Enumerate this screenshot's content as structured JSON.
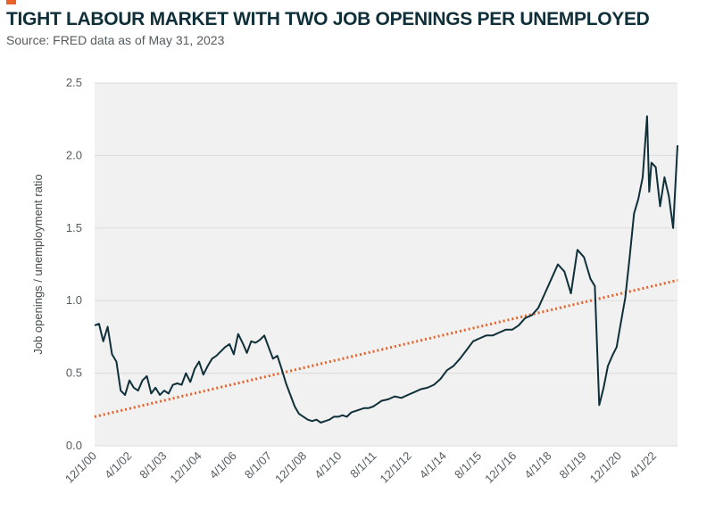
{
  "header": {
    "title": "TIGHT LABOUR MARKET WITH TWO JOB OPENINGS PER UNEMPLOYED",
    "subtitle": "Source: FRED data as of May 31, 2023"
  },
  "colors": {
    "accent": "#e8632a",
    "line": "#0f2f39",
    "trend": "#e8632a",
    "grid": "#dcdcdc",
    "plot_bg": "#f1f1f1"
  },
  "chart_data": {
    "type": "line",
    "title": "TIGHT LABOUR MARKET WITH TWO JOB OPENINGS PER UNEMPLOYED",
    "subtitle": "Source: FRED data as of May 31, 2023",
    "xlabel": "",
    "ylabel": "Job openings / unemployment ratio",
    "ylim": [
      0,
      2.5
    ],
    "yticks": [
      "0.0",
      "0.5",
      "1.0",
      "1.5",
      "2.0",
      "2.5"
    ],
    "xticks": [
      "12/1/00",
      "4/1/02",
      "8/1/03",
      "12/1/04",
      "4/1/06",
      "8/1/07",
      "12/1/08",
      "4/1/10",
      "8/1/11",
      "12/1/12",
      "4/1/14",
      "8/1/15",
      "12/1/16",
      "4/1/18",
      "8/1/19",
      "12/1/20",
      "4/1/22"
    ],
    "xlim": [
      "2000-12",
      "2023-04"
    ],
    "grid": "horizontal",
    "legend": "none",
    "series": [
      {
        "style": "solid",
        "x": [
          "2000-12",
          "2001-02",
          "2001-04",
          "2001-06",
          "2001-08",
          "2001-10",
          "2001-12",
          "2002-02",
          "2002-04",
          "2002-06",
          "2002-08",
          "2002-10",
          "2002-12",
          "2003-02",
          "2003-04",
          "2003-06",
          "2003-08",
          "2003-10",
          "2003-12",
          "2004-02",
          "2004-04",
          "2004-06",
          "2004-08",
          "2004-10",
          "2004-12",
          "2005-02",
          "2005-04",
          "2005-06",
          "2005-08",
          "2005-10",
          "2005-12",
          "2006-02",
          "2006-04",
          "2006-06",
          "2006-08",
          "2006-10",
          "2006-12",
          "2007-02",
          "2007-04",
          "2007-06",
          "2007-08",
          "2007-10",
          "2007-12",
          "2008-02",
          "2008-04",
          "2008-06",
          "2008-08",
          "2008-10",
          "2008-12",
          "2009-02",
          "2009-04",
          "2009-06",
          "2009-08",
          "2009-10",
          "2009-12",
          "2010-02",
          "2010-04",
          "2010-06",
          "2010-08",
          "2010-10",
          "2010-12",
          "2011-02",
          "2011-04",
          "2011-06",
          "2011-08",
          "2011-10",
          "2011-12",
          "2012-03",
          "2012-06",
          "2012-09",
          "2012-12",
          "2013-03",
          "2013-06",
          "2013-09",
          "2013-12",
          "2014-03",
          "2014-06",
          "2014-09",
          "2014-12",
          "2015-03",
          "2015-06",
          "2015-09",
          "2015-12",
          "2016-03",
          "2016-06",
          "2016-09",
          "2016-12",
          "2017-03",
          "2017-06",
          "2017-09",
          "2017-12",
          "2018-03",
          "2018-06",
          "2018-09",
          "2018-12",
          "2019-03",
          "2019-06",
          "2019-09",
          "2019-12",
          "2020-02",
          "2020-04",
          "2020-06",
          "2020-08",
          "2020-10",
          "2020-12",
          "2021-02",
          "2021-04",
          "2021-06",
          "2021-08",
          "2021-10",
          "2021-12",
          "2022-02",
          "2022-03",
          "2022-04",
          "2022-06",
          "2022-08",
          "2022-10",
          "2022-12",
          "2023-02",
          "2023-04"
        ],
        "values": [
          0.83,
          0.84,
          0.72,
          0.82,
          0.63,
          0.58,
          0.38,
          0.35,
          0.45,
          0.4,
          0.38,
          0.45,
          0.48,
          0.36,
          0.4,
          0.35,
          0.38,
          0.36,
          0.42,
          0.43,
          0.42,
          0.5,
          0.44,
          0.53,
          0.58,
          0.49,
          0.55,
          0.6,
          0.62,
          0.65,
          0.68,
          0.7,
          0.63,
          0.77,
          0.71,
          0.64,
          0.72,
          0.71,
          0.73,
          0.76,
          0.68,
          0.6,
          0.62,
          0.53,
          0.43,
          0.35,
          0.27,
          0.22,
          0.2,
          0.18,
          0.17,
          0.18,
          0.16,
          0.17,
          0.18,
          0.2,
          0.2,
          0.21,
          0.2,
          0.23,
          0.24,
          0.25,
          0.26,
          0.26,
          0.27,
          0.29,
          0.31,
          0.32,
          0.34,
          0.33,
          0.35,
          0.37,
          0.39,
          0.4,
          0.42,
          0.46,
          0.52,
          0.55,
          0.6,
          0.66,
          0.72,
          0.74,
          0.76,
          0.76,
          0.78,
          0.8,
          0.8,
          0.83,
          0.88,
          0.9,
          0.95,
          1.05,
          1.15,
          1.25,
          1.2,
          1.05,
          1.35,
          1.3,
          1.15,
          1.1,
          0.28,
          0.4,
          0.55,
          0.62,
          0.68,
          0.85,
          1.02,
          1.3,
          1.6,
          1.7,
          1.85,
          2.27,
          1.75,
          1.95,
          1.92,
          1.65,
          1.85,
          1.72,
          1.5,
          2.07
        ]
      },
      {
        "style": "dotted-trend",
        "x": [
          "2000-12",
          "2023-04"
        ],
        "values": [
          0.2,
          1.14
        ]
      }
    ]
  }
}
